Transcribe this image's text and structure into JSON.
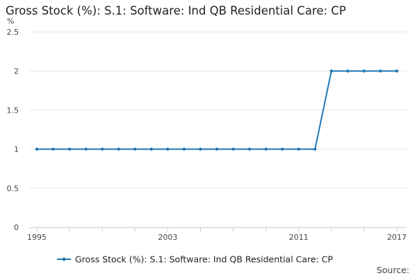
{
  "chart_data": {
    "type": "line",
    "title": "Gross Stock (%): S.1: Software: Ind QB Residential Care: CP",
    "ylabel": "%",
    "xlabel": "",
    "x": [
      1995,
      1996,
      1997,
      1998,
      1999,
      2000,
      2001,
      2002,
      2003,
      2004,
      2005,
      2006,
      2007,
      2008,
      2009,
      2010,
      2011,
      2012,
      2013,
      2014,
      2015,
      2016,
      2017
    ],
    "series": [
      {
        "name": "Gross Stock (%): S.1: Software: Ind QB Residential Care: CP",
        "values": [
          1,
          1,
          1,
          1,
          1,
          1,
          1,
          1,
          1,
          1,
          1,
          1,
          1,
          1,
          1,
          1,
          1,
          1,
          2,
          2,
          2,
          2,
          2
        ]
      }
    ],
    "xlim": [
      1995,
      2017
    ],
    "ylim": [
      0,
      2.5
    ],
    "x_tick_labels": [
      "1995",
      "2003",
      "2011",
      "2017"
    ],
    "y_tick_labels": [
      "0",
      "0.5",
      "1",
      "1.5",
      "2",
      "2.5"
    ],
    "grid": "horizontal",
    "legend_position": "bottom",
    "series_color": "#1f77b4",
    "source_label": "Source:"
  }
}
